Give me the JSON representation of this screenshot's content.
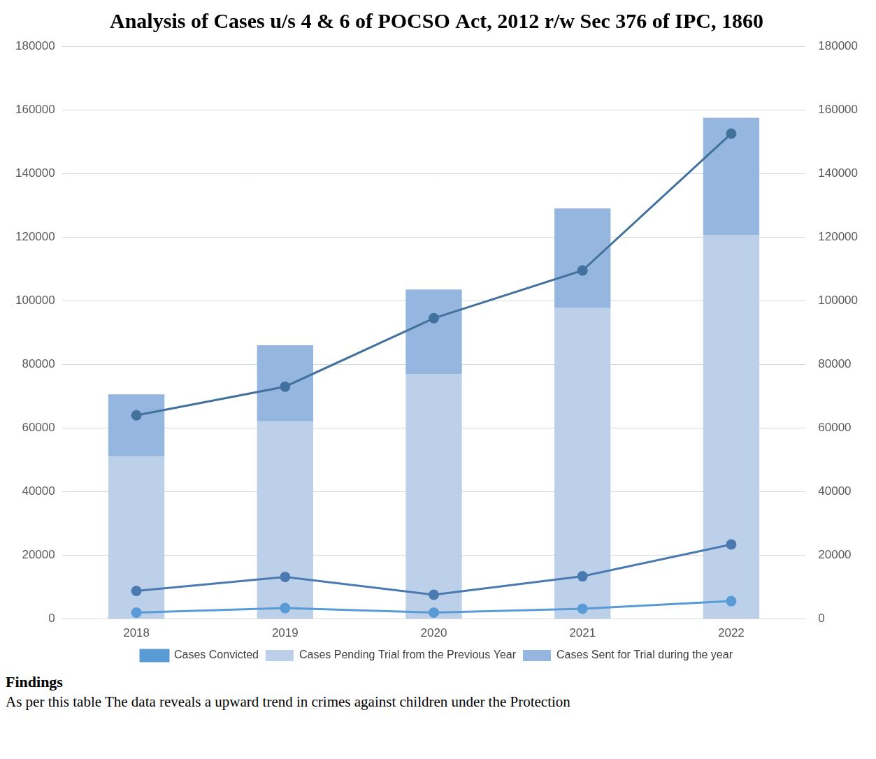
{
  "chart_data": {
    "type": "bar",
    "title": "Analysis of Cases u/s 4 & 6 of POCSO Act, 2012 r/w Sec 376 of IPC, 1860",
    "categories": [
      "2018",
      "2019",
      "2020",
      "2021",
      "2022"
    ],
    "stacked": true,
    "grid": true,
    "legend": "bottom",
    "ylim": [
      0,
      180000
    ],
    "yticks": [
      0,
      20000,
      40000,
      60000,
      80000,
      100000,
      120000,
      140000,
      160000,
      180000
    ],
    "y2lim": [
      0,
      180000
    ],
    "y2ticks": [
      0,
      20000,
      40000,
      60000,
      80000,
      100000,
      120000,
      140000,
      160000,
      180000
    ],
    "series": [
      {
        "name": "Cases Pending Trial from the Previous Year",
        "type": "bar",
        "color": "#bdd0ea",
        "values": [
          51000,
          62000,
          77000,
          97700,
          120700
        ]
      },
      {
        "name": "Cases Sent for Trial during the year",
        "type": "bar",
        "color": "#95b7df",
        "values": [
          19600,
          24000,
          26500,
          31300,
          36800
        ]
      },
      {
        "type": "line",
        "axis": "y2",
        "color": "#41719c",
        "marker": "circle",
        "values": [
          64000,
          73000,
          94500,
          109500,
          152500
        ]
      },
      {
        "type": "line",
        "axis": "y2",
        "color": "#4a7ab0",
        "marker": "circle",
        "values": [
          8800,
          13200,
          7600,
          13400,
          23400
        ]
      },
      {
        "name": "Cases Convicted",
        "type": "line",
        "axis": "y2",
        "color": "#5b9bd5",
        "marker": "circle",
        "values": [
          2000,
          3400,
          2000,
          3200,
          5600
        ]
      }
    ]
  },
  "findings": {
    "heading": "Findings",
    "text": "As per this table The data reveals a upward trend in crimes against children under the Protection"
  }
}
